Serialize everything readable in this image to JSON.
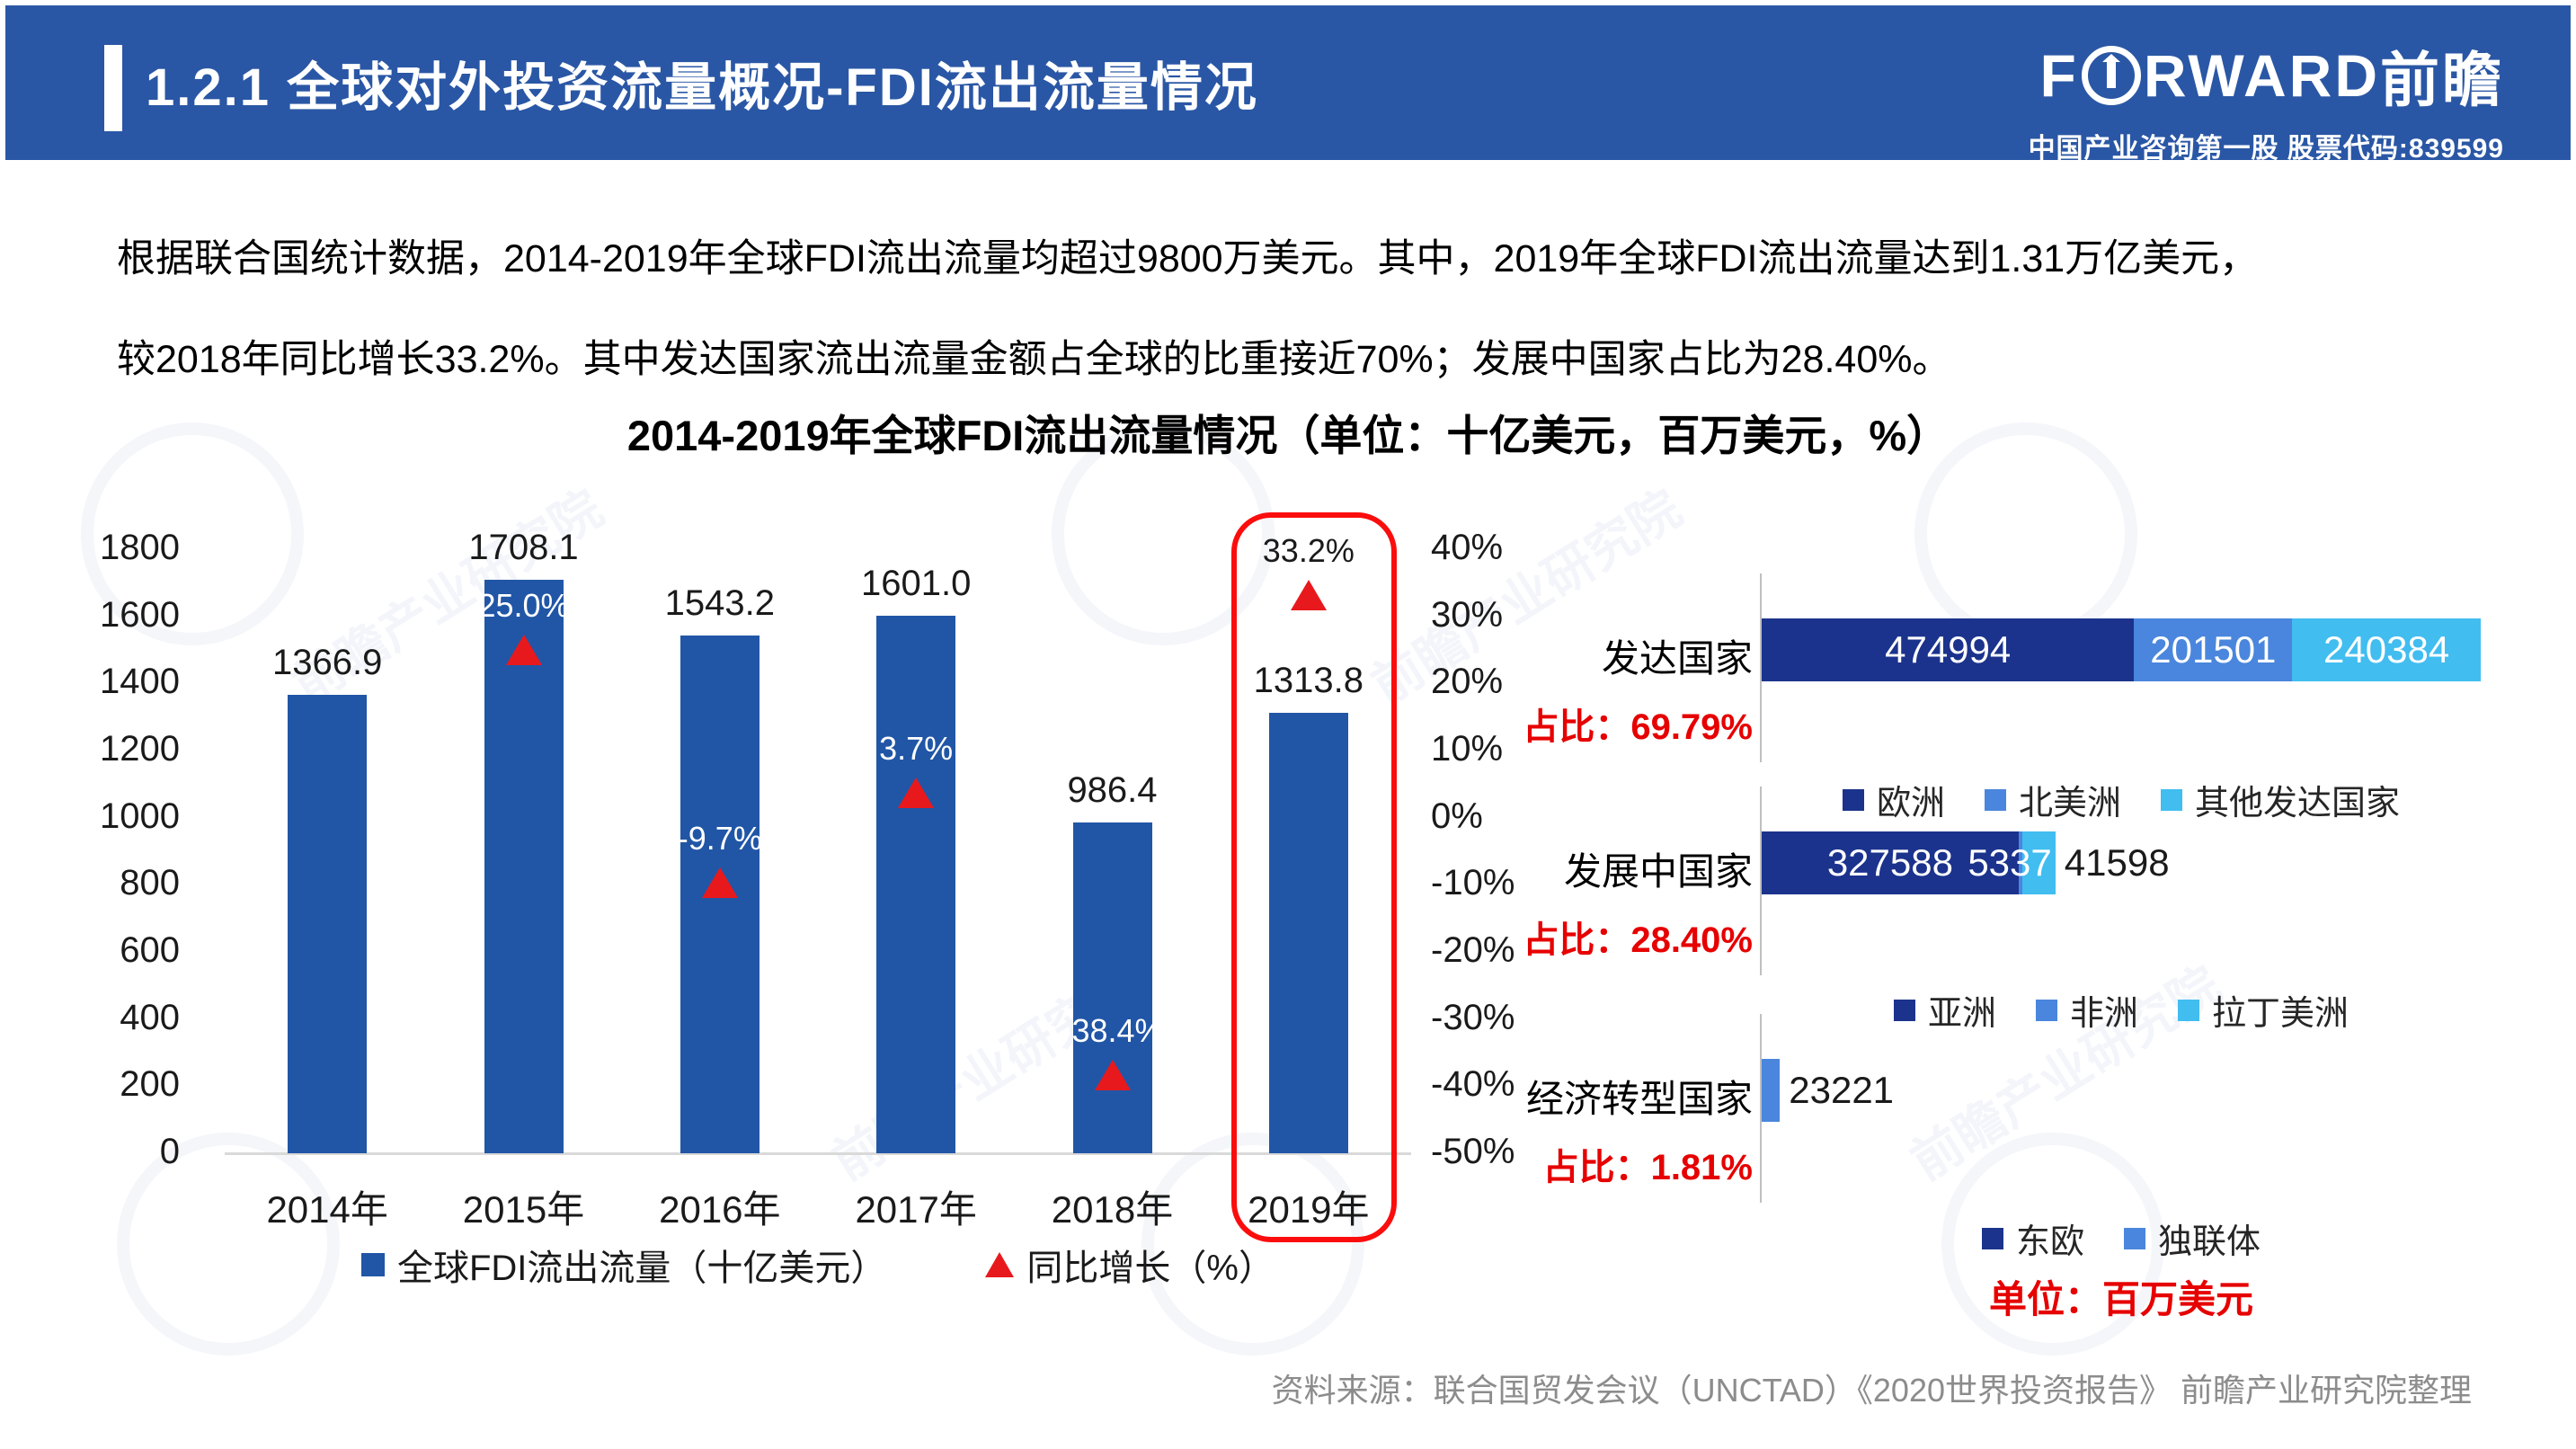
{
  "colors": {
    "header_blue": "#2a57a5",
    "bar_blue": "#2156a6",
    "navy": "#1b338c",
    "mid_blue": "#4a86dd",
    "cyan": "#41bdf0",
    "triangle_red": "#e8191c",
    "highlight_red": "#fb0d0d",
    "share_red": "#e60000",
    "source_gray": "#8c8c8c"
  },
  "header": {
    "title": "1.2.1 全球对外投资流量概况-FDI流出流量情况",
    "logo": {
      "prefix": "F",
      "rest": "RWARD",
      "cn": "前瞻",
      "tagline": "中国产业咨询第一股 股票代码:839599"
    }
  },
  "intro": {
    "line1": "根据联合国统计数据，2014-2019年全球FDI流出流量均超过9800万美元。其中，2019年全球FDI流出流量达到1.31万亿美元，",
    "line2": "较2018年同比增长33.2%。其中发达国家流出流量金额占全球的比重接近70%；发展中国家占比为28.40%。"
  },
  "chart_title": "2014-2019年全球FDI流出流量情况（单位：十亿美元，百万美元，%）",
  "chart_data": [
    {
      "type": "bar",
      "title": "2014-2019年全球FDI流出流量情况",
      "categories": [
        "2014年",
        "2015年",
        "2016年",
        "2017年",
        "2018年",
        "2019年"
      ],
      "series": [
        {
          "name": "全球FDI流出流量（十亿美元）",
          "type": "bar",
          "color": "#2156a6",
          "values": [
            1366.9,
            1708.1,
            1543.2,
            1601.0,
            986.4,
            1313.8
          ],
          "value_labels": [
            "1366.9",
            "1708.1",
            "1543.2",
            "1601.0",
            "986.4",
            "1313.8"
          ]
        },
        {
          "name": "同比增长（%）",
          "type": "triangle-marker",
          "color": "#e8191c",
          "values": [
            null,
            25.0,
            -9.7,
            3.7,
            -38.4,
            33.2
          ],
          "value_labels": [
            "",
            "25.0%",
            "-9.7%",
            "3.7%",
            "-38.4%",
            "33.2%"
          ]
        }
      ],
      "y_left": {
        "min": 0,
        "max": 1800,
        "step": 200
      },
      "y_right": {
        "min": -50,
        "max": 40,
        "step": 10,
        "suffix": "%"
      },
      "grid": false,
      "legend_position": "bottom",
      "highlight_category": "2019年"
    },
    {
      "type": "stacked-bar-horizontal",
      "unit_note": "单位：百万美元",
      "rows": [
        {
          "label": "发达国家",
          "share_label": "占比：69.79%",
          "segments": [
            {
              "name": "欧洲",
              "value": 474994,
              "label": "474994",
              "color": "#1b338c"
            },
            {
              "name": "北美洲",
              "value": 201501,
              "label": "201501",
              "color": "#4a86dd"
            },
            {
              "name": "其他发达国家",
              "value": 240384,
              "label": "240384",
              "color": "#41bdf0"
            }
          ],
          "legend": [
            {
              "name": "欧洲",
              "color": "#1b338c"
            },
            {
              "name": "北美洲",
              "color": "#4a86dd"
            },
            {
              "name": "其他发达国家",
              "color": "#41bdf0"
            }
          ]
        },
        {
          "label": "发展中国家",
          "share_label": "占比：28.40%",
          "segments": [
            {
              "name": "亚洲",
              "value": 327588,
              "label": "327588",
              "color": "#1b338c"
            },
            {
              "name": "非洲",
              "value": 5337,
              "label": "5337",
              "color": "#4a86dd"
            },
            {
              "name": "拉丁美洲",
              "value": 41598,
              "label": "41598",
              "color": "#41bdf0"
            }
          ],
          "legend": [
            {
              "name": "亚洲",
              "color": "#1b338c"
            },
            {
              "name": "非洲",
              "color": "#4a86dd"
            },
            {
              "name": "拉丁美洲",
              "color": "#41bdf0"
            }
          ]
        },
        {
          "label": "经济转型国家",
          "share_label": "占比：1.81%",
          "segments": [
            {
              "name": "独联体",
              "value": 23221,
              "label": "23221",
              "color": "#4a86dd"
            }
          ],
          "legend": [
            {
              "name": "东欧",
              "color": "#1b338c"
            },
            {
              "name": "独联体",
              "color": "#4a86dd"
            }
          ]
        }
      ]
    }
  ],
  "watermark_text": "前瞻产业研究院",
  "footer": {
    "source": "资料来源：联合国贸发会议（UNCTAD）《2020世界投资报告》 前瞻产业研究院整理"
  }
}
